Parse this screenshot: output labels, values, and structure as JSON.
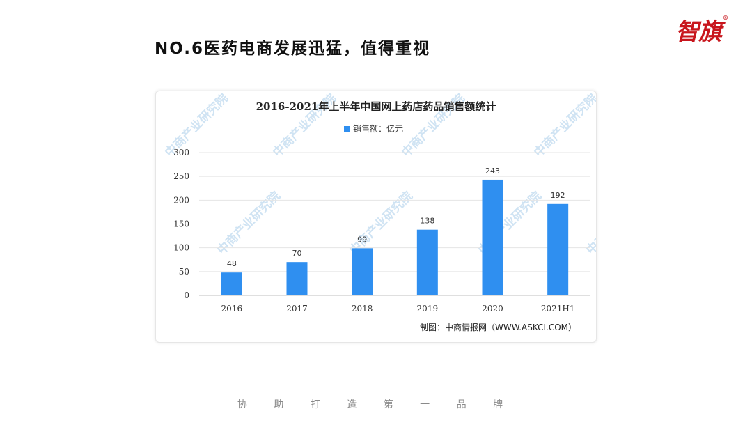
{
  "slide": {
    "heading": "NO.6医药电商发展迅猛，值得重视",
    "footer": "协 助 打 造 第 一 品 牌"
  },
  "brand": {
    "logo_text": "智旗",
    "registered_mark": "®",
    "logo_color": "#c8161d"
  },
  "watermark": {
    "text": "中商产业研究院",
    "color": "#cfe3f3"
  },
  "chart_data": {
    "type": "bar",
    "title": "2016-2021年上半年中国网上药店药品销售额统计",
    "categories": [
      "2016",
      "2017",
      "2018",
      "2019",
      "2020",
      "2021H1"
    ],
    "series": [
      {
        "name": "销售额：亿元",
        "values": [
          48,
          70,
          99,
          138,
          243,
          192
        ]
      }
    ],
    "data_labels": [
      "48",
      "70",
      "99",
      "138",
      "243",
      "192"
    ],
    "ylim": [
      0,
      300
    ],
    "yticks": [
      0,
      50,
      100,
      150,
      200,
      250,
      300
    ],
    "xlabel": "",
    "ylabel": "",
    "grid": true,
    "legend": "top-center",
    "bar_color": "#2f8ff0",
    "source": "制图：中商情报网（WWW.ASKCI.COM）"
  }
}
